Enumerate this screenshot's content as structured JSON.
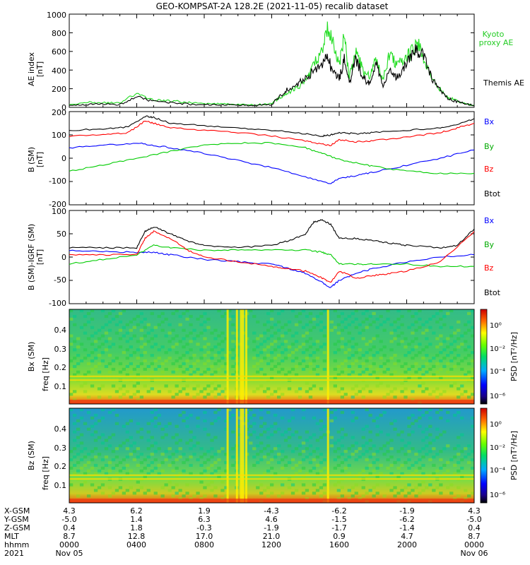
{
  "title": "GEO-KOMPSAT-2A 128.2E (2021-11-05) recalib dataset",
  "colors": {
    "black": "#000000",
    "blue": "#0000ff",
    "green": "#00cc00",
    "red": "#ff0000",
    "kyoto": "#22dd22"
  },
  "panels": {
    "ae": {
      "ylabel": "AE index",
      "unit": "[nT]",
      "yticks": [
        "0",
        "200",
        "400",
        "600",
        "800",
        "1000"
      ],
      "legend": {
        "kyoto_1": "Kyoto",
        "kyoto_2": "proxy AE",
        "themis": "Themis AE"
      }
    },
    "bsm": {
      "ylabel": "B (SM)",
      "unit": "[nT]",
      "yticks": [
        "-200",
        "-100",
        "0",
        "100",
        "200"
      ],
      "legend": {
        "bx": "Bx",
        "by": "By",
        "bz": "Bz",
        "btot": "Btot"
      }
    },
    "bigrf": {
      "ylabel": "B (SM)-IGRF (SM)",
      "unit": "[nT]",
      "yticks": [
        "-100",
        "-50",
        "0",
        "50",
        "100"
      ],
      "legend": {
        "bx": "Bx",
        "by": "By",
        "bz": "Bz",
        "btot": "Btot"
      }
    },
    "spec_bx": {
      "ylabel": "Bx (SM)",
      "sublabel": "freq [Hz]",
      "yticks": [
        "0.1",
        "0.2",
        "0.3",
        "0.4"
      ],
      "cbar_label": "PSD [nT²/Hz]",
      "cbar_ticks": [
        "10⁰",
        "10⁻²",
        "10⁻⁴",
        "10⁻⁶"
      ]
    },
    "spec_bz": {
      "ylabel": "Bz (SM)",
      "sublabel": "freq [Hz]",
      "yticks": [
        "0.1",
        "0.2",
        "0.3",
        "0.4"
      ],
      "cbar_label": "PSD [nT²/Hz]",
      "cbar_ticks": [
        "10⁰",
        "10⁻²",
        "10⁻⁴",
        "10⁻⁶"
      ]
    }
  },
  "xaxis": {
    "row_labels": [
      "X-GSM",
      "Y-GSM",
      "Z-GSM",
      "MLT",
      "hhmm",
      "2021"
    ],
    "columns": [
      [
        "4.3",
        "-5.0",
        "0.4",
        "8.7",
        "0000",
        "Nov 05"
      ],
      [
        "6.2",
        "1.4",
        "1.8",
        "12.8",
        "0400",
        ""
      ],
      [
        "1.9",
        "6.3",
        "-0.3",
        "17.0",
        "0800",
        ""
      ],
      [
        "-4.3",
        "4.6",
        "-1.9",
        "21.0",
        "1200",
        ""
      ],
      [
        "-6.2",
        "-1.5",
        "-1.7",
        "0.9",
        "1600",
        ""
      ],
      [
        "-1.9",
        "-6.2",
        "-1.4",
        "4.7",
        "2000",
        ""
      ],
      [
        "4.3",
        "-5.0",
        "0.4",
        "8.7",
        "0000",
        "Nov 06"
      ]
    ]
  },
  "chart_data": [
    {
      "type": "line",
      "title": "GEO-KOMPSAT-2A 128.2E (2021-11-05) recalib dataset",
      "ylabel": "AE index [nT]",
      "xlim": [
        0,
        24
      ],
      "ylim": [
        0,
        1000
      ],
      "series": [
        {
          "name": "Kyoto proxy AE",
          "color": "#22dd22",
          "x": [
            0,
            1,
            2,
            3,
            4,
            5,
            6,
            7,
            8,
            9,
            10,
            11,
            12,
            12.5,
            13,
            13.5,
            14,
            14.5,
            15,
            15.3,
            15.6,
            16,
            16.3,
            16.6,
            17,
            17.4,
            17.8,
            18.2,
            18.6,
            19,
            19.4,
            19.8,
            20.2,
            20.6,
            21,
            21.5,
            22,
            22.5,
            23,
            23.5,
            24
          ],
          "y": [
            30,
            55,
            50,
            45,
            150,
            80,
            70,
            50,
            40,
            35,
            30,
            25,
            40,
            110,
            150,
            210,
            280,
            450,
            620,
            840,
            700,
            450,
            760,
            320,
            590,
            400,
            330,
            520,
            300,
            580,
            460,
            520,
            570,
            700,
            540,
            330,
            190,
            100,
            70,
            40,
            20
          ]
        },
        {
          "name": "Themis AE",
          "color": "#000000",
          "x": [
            0,
            1,
            2,
            3,
            4,
            5,
            6,
            7,
            8,
            9,
            10,
            11,
            12,
            12.5,
            13,
            13.5,
            14,
            14.5,
            15,
            15.3,
            15.6,
            16,
            16.3,
            16.6,
            17,
            17.4,
            17.8,
            18.2,
            18.6,
            19,
            19.4,
            19.8,
            20.2,
            20.6,
            21,
            21.5,
            22,
            22.5,
            23,
            23.5,
            24
          ],
          "y": [
            20,
            30,
            35,
            30,
            110,
            60,
            50,
            35,
            30,
            25,
            25,
            20,
            30,
            130,
            200,
            250,
            300,
            400,
            480,
            560,
            380,
            300,
            520,
            260,
            520,
            330,
            250,
            480,
            220,
            450,
            320,
            420,
            540,
            620,
            560,
            300,
            180,
            90,
            60,
            35,
            20
          ]
        }
      ]
    },
    {
      "type": "line",
      "ylabel": "B (SM) [nT]",
      "xlim": [
        0,
        24
      ],
      "ylim": [
        -200,
        200
      ],
      "series": [
        {
          "name": "Bx",
          "color": "#0000ff",
          "x": [
            0,
            2,
            4,
            5,
            6,
            8,
            10,
            12,
            14,
            15.5,
            16,
            17,
            18,
            20,
            22,
            24
          ],
          "y": [
            45,
            55,
            65,
            55,
            45,
            20,
            -10,
            -40,
            -80,
            -110,
            -85,
            -75,
            -60,
            -30,
            0,
            35
          ]
        },
        {
          "name": "By",
          "color": "#00cc00",
          "x": [
            0,
            2,
            4,
            6,
            8,
            10,
            12,
            14,
            15,
            16,
            17,
            18,
            20,
            22,
            24
          ],
          "y": [
            -55,
            -30,
            0,
            30,
            55,
            65,
            65,
            45,
            20,
            -5,
            -20,
            -35,
            -55,
            -65,
            -65
          ]
        },
        {
          "name": "Bz",
          "color": "#ff0000",
          "x": [
            0,
            2,
            3.5,
            4.5,
            5,
            6,
            8,
            10,
            12,
            14,
            15,
            15.5,
            16,
            17,
            18,
            20,
            22,
            23,
            24
          ],
          "y": [
            95,
            100,
            110,
            160,
            150,
            130,
            120,
            110,
            95,
            75,
            60,
            55,
            80,
            70,
            75,
            90,
            110,
            130,
            150
          ]
        },
        {
          "name": "Btot",
          "color": "#000000",
          "x": [
            0,
            2,
            3.5,
            4.5,
            5,
            6,
            8,
            10,
            12,
            14,
            15,
            15.5,
            16,
            17,
            18,
            20,
            22,
            23,
            24
          ],
          "y": [
            120,
            125,
            135,
            180,
            175,
            150,
            140,
            130,
            120,
            105,
            95,
            100,
            110,
            105,
            110,
            120,
            130,
            145,
            170
          ]
        }
      ]
    },
    {
      "type": "line",
      "ylabel": "B (SM)-IGRF (SM) [nT]",
      "xlim": [
        0,
        24
      ],
      "ylim": [
        -100,
        100
      ],
      "series": [
        {
          "name": "Bx",
          "color": "#0000ff",
          "x": [
            0,
            2,
            4,
            5,
            6,
            8,
            10,
            12,
            13,
            14,
            15,
            15.5,
            16,
            17,
            18,
            20,
            22,
            24
          ],
          "y": [
            15,
            12,
            10,
            10,
            5,
            -5,
            -10,
            -15,
            -25,
            -35,
            -55,
            -65,
            -50,
            -35,
            -25,
            -10,
            0,
            5
          ]
        },
        {
          "name": "By",
          "color": "#00cc00",
          "x": [
            0,
            2,
            4,
            5,
            6,
            8,
            10,
            12,
            14,
            15,
            15.5,
            16,
            17,
            18,
            20,
            22,
            24
          ],
          "y": [
            -15,
            -5,
            5,
            25,
            20,
            15,
            15,
            15,
            15,
            10,
            5,
            -15,
            -15,
            -15,
            -15,
            -20,
            -20
          ]
        },
        {
          "name": "Bz",
          "color": "#ff0000",
          "x": [
            0,
            2,
            4,
            4.5,
            5,
            6,
            7,
            8,
            10,
            12,
            13,
            14,
            15,
            15.5,
            16,
            17,
            18,
            19,
            20,
            22,
            24
          ],
          "y": [
            5,
            5,
            5,
            40,
            55,
            40,
            15,
            0,
            -10,
            -20,
            -25,
            -30,
            -45,
            -55,
            -30,
            -45,
            -40,
            -35,
            -30,
            -10,
            55
          ]
        },
        {
          "name": "Btot",
          "color": "#000000",
          "x": [
            0,
            2,
            4,
            4.5,
            5,
            6,
            7,
            8,
            10,
            12,
            13,
            14,
            14.5,
            15,
            15.5,
            16,
            17,
            18,
            19,
            20,
            22,
            23,
            24
          ],
          "y": [
            20,
            20,
            20,
            55,
            65,
            50,
            35,
            25,
            20,
            25,
            35,
            50,
            75,
            80,
            70,
            40,
            40,
            35,
            30,
            25,
            20,
            25,
            60
          ]
        }
      ]
    },
    {
      "type": "heatmap",
      "ylabel": "Bx (SM) freq [Hz]",
      "xlim": [
        0,
        24
      ],
      "ylim": [
        0,
        0.5
      ],
      "colorbar": {
        "label": "PSD [nT²/Hz]",
        "range_log10": [
          -7,
          1
        ]
      }
    },
    {
      "type": "heatmap",
      "ylabel": "Bz (SM) freq [Hz]",
      "xlim": [
        0,
        24
      ],
      "ylim": [
        0,
        0.5
      ],
      "colorbar": {
        "label": "PSD [nT²/Hz]",
        "range_log10": [
          -7,
          1
        ]
      }
    }
  ]
}
